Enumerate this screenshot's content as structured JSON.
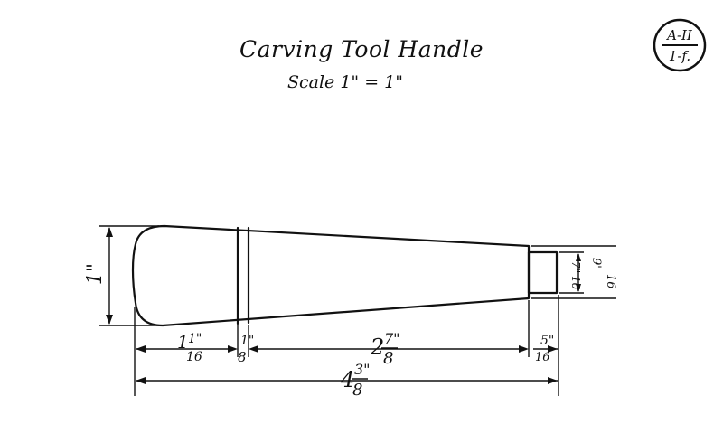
{
  "drawing": {
    "title": "Carving Tool Handle",
    "scale": "Scale 1\" = 1\"",
    "badge": {
      "top": "A-II",
      "bottom": "1-f."
    }
  },
  "dimensions": {
    "height": "1\"",
    "seg1": {
      "whole": "1",
      "num": "1\"",
      "den": "16"
    },
    "seg2": {
      "num": "1\"",
      "den": "8"
    },
    "seg3": {
      "whole": "2",
      "num": "7\"",
      "den": "8"
    },
    "seg4": {
      "num": "5\"",
      "den": "16"
    },
    "total": {
      "whole": "4",
      "num": "3\"",
      "den": "8"
    },
    "tip1": {
      "num": "7\"",
      "den": "16"
    },
    "tip2": {
      "num": "9\"",
      "den": "16"
    }
  }
}
